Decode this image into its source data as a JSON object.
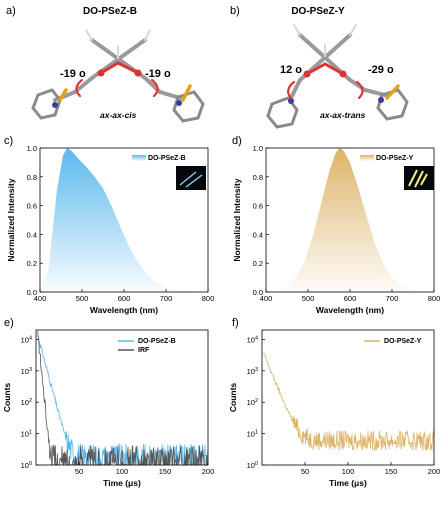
{
  "colors": {
    "blue": "#5bb8ec",
    "gold": "#dcb46a",
    "gray": "#555555"
  },
  "panel_a": {
    "label": "a)",
    "title": "DO-PSeZ-B",
    "angle_left": "-19 o",
    "angle_right": "-19 o",
    "conformation": "ax-ax-cis"
  },
  "panel_b": {
    "label": "b)",
    "title": "DO-PSeZ-Y",
    "angle_left": "12 o",
    "angle_right": "-29 o",
    "conformation": "ax-ax-trans"
  },
  "chart_data": [
    {
      "panel": "c)",
      "type": "area",
      "xlabel": "Wavelength (nm)",
      "ylabel": "Normalized Intensity",
      "xlim": [
        400,
        800
      ],
      "ylim": [
        0,
        1.0
      ],
      "xticks": [
        "400",
        "500",
        "600",
        "700",
        "800"
      ],
      "yticks": [
        "0.0",
        "0.2",
        "0.4",
        "0.6",
        "0.8",
        "1.0"
      ],
      "series": [
        {
          "name": "DO-PSeZ-B",
          "color": "#5bb8ec",
          "x": [
            400,
            420,
            440,
            455,
            465,
            475,
            490,
            510,
            530,
            550,
            570,
            590,
            610,
            630,
            650,
            670,
            690,
            710,
            730,
            750,
            770
          ],
          "y": [
            0.01,
            0.15,
            0.7,
            0.95,
            1.0,
            0.98,
            0.93,
            0.87,
            0.8,
            0.72,
            0.6,
            0.46,
            0.33,
            0.22,
            0.14,
            0.08,
            0.045,
            0.025,
            0.012,
            0.006,
            0.0
          ]
        }
      ]
    },
    {
      "panel": "d)",
      "type": "area",
      "xlabel": "Wavelength (nm)",
      "ylabel": "Normalized Intensity",
      "xlim": [
        400,
        800
      ],
      "ylim": [
        0,
        1.0
      ],
      "xticks": [
        "400",
        "500",
        "600",
        "700",
        "800"
      ],
      "yticks": [
        "0.0",
        "0.2",
        "0.4",
        "0.6",
        "0.8",
        "1.0"
      ],
      "series": [
        {
          "name": "DO-PSeZ-Y",
          "color": "#dcb46a",
          "x": [
            430,
            460,
            490,
            510,
            530,
            550,
            565,
            575,
            585,
            600,
            620,
            640,
            660,
            680,
            700,
            720,
            740,
            760
          ],
          "y": [
            0.0,
            0.05,
            0.2,
            0.37,
            0.6,
            0.83,
            0.96,
            1.0,
            0.98,
            0.9,
            0.72,
            0.52,
            0.33,
            0.19,
            0.1,
            0.05,
            0.02,
            0.0
          ]
        }
      ]
    },
    {
      "panel": "e)",
      "type": "line",
      "xlabel": "Time (μs)",
      "ylabel": "Counts",
      "ylog": true,
      "xlim": [
        0,
        200
      ],
      "ylim": [
        1,
        20000
      ],
      "xticks": [
        "50",
        "100",
        "150",
        "200"
      ],
      "yticks": [
        "10",
        "10",
        "10",
        "10",
        "10"
      ],
      "yexp": [
        "0",
        "1",
        "2",
        "3",
        "4"
      ],
      "series": [
        {
          "name": "DO-PSeZ-B",
          "color": "#5bb8ec",
          "peak": 14000,
          "tau": 4.2,
          "floor": 1.8,
          "noise": 0.6
        },
        {
          "name": "IRF",
          "color": "#555555",
          "peak": 16000,
          "tau": 1.6,
          "floor": 1.0,
          "noise": 0.9
        }
      ]
    },
    {
      "panel": "f)",
      "type": "line",
      "xlabel": "Time (μs)",
      "ylabel": "Counts",
      "ylog": true,
      "xlim": [
        0,
        200
      ],
      "ylim": [
        1,
        20000
      ],
      "xticks": [
        "50",
        "100",
        "150",
        "200"
      ],
      "yticks": [
        "10",
        "10",
        "10",
        "10",
        "10"
      ],
      "yexp": [
        "0",
        "1",
        "2",
        "3",
        "4"
      ],
      "series": [
        {
          "name": "DO-PSeZ-Y",
          "color": "#dcb46a",
          "peak": 3500,
          "tau": 6.5,
          "floor": 6.0,
          "noise": 0.45
        }
      ]
    }
  ]
}
